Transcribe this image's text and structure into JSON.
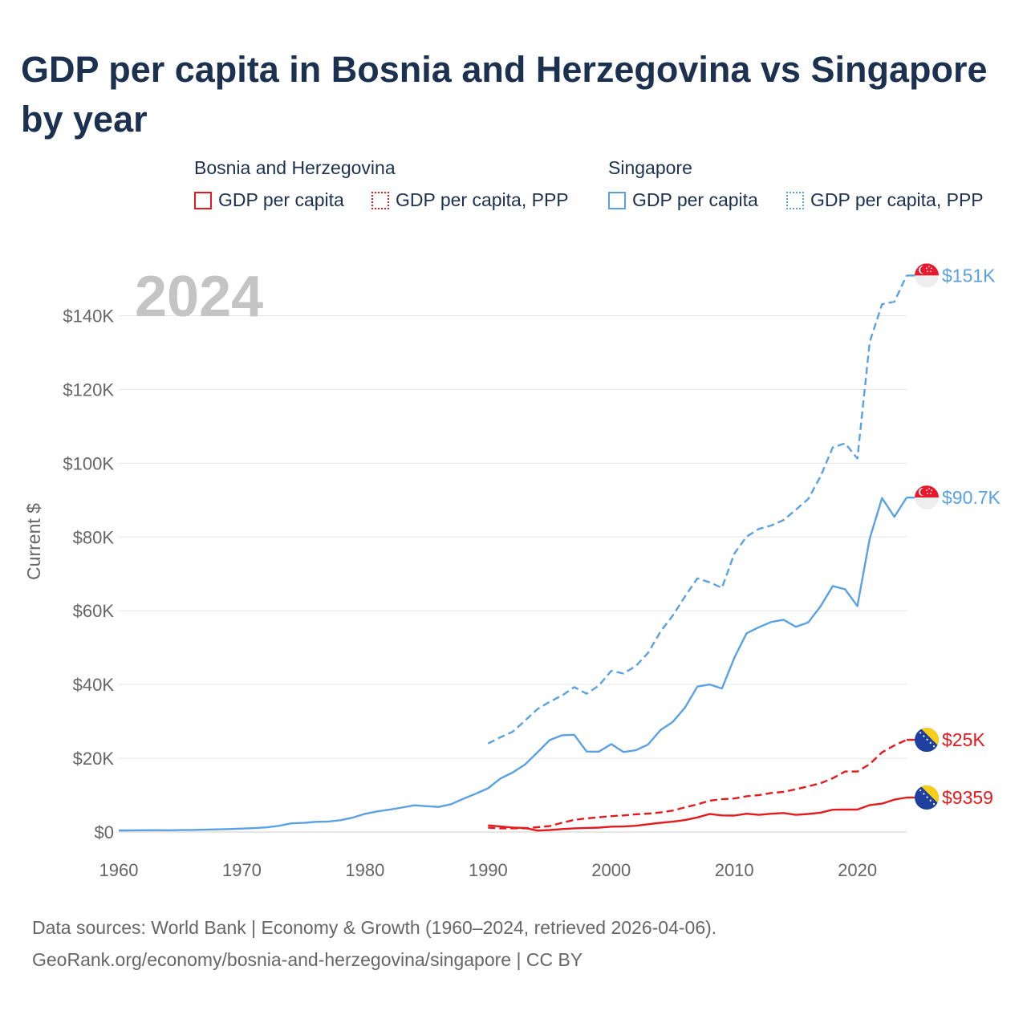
{
  "title": "GDP per capita in Bosnia and Herzegovina vs Singapore by year",
  "legend": {
    "groups": [
      {
        "name": "Bosnia and Herzegovina",
        "items": [
          {
            "label": "GDP per capita",
            "style": "solid",
            "color": "#e41a1c"
          },
          {
            "label": "GDP per capita, PPP",
            "style": "dotted",
            "color": "#e41a1c"
          }
        ]
      },
      {
        "name": "Singapore",
        "items": [
          {
            "label": "GDP per capita",
            "style": "solid",
            "color": "#5aa1e3"
          },
          {
            "label": "GDP per capita, PPP",
            "style": "dotted",
            "color": "#5aa1e3"
          }
        ]
      }
    ]
  },
  "chart_data": {
    "type": "line",
    "year_label": "2024",
    "ylabel": "Current $",
    "xlim": [
      1960,
      2024
    ],
    "ylim": [
      0,
      150000
    ],
    "x_ticks": [
      1960,
      1970,
      1980,
      1990,
      2000,
      2010,
      2020
    ],
    "x_tick_labels": [
      "1960",
      "1970",
      "1980",
      "1990",
      "2000",
      "2010",
      "2020"
    ],
    "y_ticks": [
      0,
      20000,
      40000,
      60000,
      80000,
      100000,
      120000,
      140000
    ],
    "y_tick_labels": [
      "$0",
      "$20K",
      "$40K",
      "$60K",
      "$80K",
      "$100K",
      "$120K",
      "$140K"
    ],
    "grid": true,
    "series": [
      {
        "name": "Singapore GDP per capita",
        "country": "Singapore",
        "color": "#5aa1e3",
        "dash": "solid",
        "end_label": "$90.7K",
        "flag": "singapore-flag-icon",
        "x": [
          1960,
          1961,
          1962,
          1963,
          1964,
          1965,
          1966,
          1967,
          1968,
          1969,
          1970,
          1971,
          1972,
          1973,
          1974,
          1975,
          1976,
          1977,
          1978,
          1979,
          1980,
          1981,
          1982,
          1983,
          1984,
          1985,
          1986,
          1987,
          1988,
          1989,
          1990,
          1991,
          1992,
          1993,
          1994,
          1995,
          1996,
          1997,
          1998,
          1999,
          2000,
          2001,
          2002,
          2003,
          2004,
          2005,
          2006,
          2007,
          2008,
          2009,
          2010,
          2011,
          2012,
          2013,
          2014,
          2015,
          2016,
          2017,
          2018,
          2019,
          2020,
          2021,
          2022,
          2023,
          2024
        ],
        "values": [
          428,
          449,
          472,
          511,
          485,
          516,
          566,
          626,
          708,
          812,
          925,
          1070,
          1264,
          1685,
          2342,
          2490,
          2770,
          2846,
          3194,
          3901,
          4928,
          5596,
          6078,
          6632,
          7235,
          7002,
          6800,
          7539,
          9018,
          10394,
          11862,
          14502,
          16136,
          18290,
          21553,
          24915,
          26233,
          26375,
          21829,
          21797,
          23853,
          21701,
          22160,
          23730,
          27619,
          29870,
          33768,
          39433,
          40008,
          38927,
          47237,
          53891,
          55546,
          56967,
          57563,
          55647,
          56828,
          61176,
          66680,
          65831,
          61274,
          79601,
          90557,
          85488,
          90689
        ]
      },
      {
        "name": "Singapore GDP per capita, PPP",
        "country": "Singapore",
        "color": "#5aa1e3",
        "dash": "dashed",
        "end_label": "$151K",
        "flag": "singapore-flag-icon",
        "x": [
          1990,
          1991,
          1992,
          1993,
          1994,
          1995,
          1996,
          1997,
          1998,
          1999,
          2000,
          2001,
          2002,
          2003,
          2004,
          2005,
          2006,
          2007,
          2008,
          2009,
          2010,
          2011,
          2012,
          2013,
          2014,
          2015,
          2016,
          2017,
          2018,
          2019,
          2020,
          2021,
          2022,
          2023,
          2024
        ],
        "values": [
          24000,
          25700,
          27200,
          30200,
          33300,
          35300,
          37000,
          39300,
          37500,
          39700,
          43700,
          43000,
          45000,
          48600,
          54300,
          58700,
          63900,
          68800,
          67700,
          66200,
          75500,
          80100,
          82200,
          83100,
          84600,
          87400,
          90300,
          96400,
          104300,
          105400,
          101300,
          132900,
          143100,
          143800,
          150900
        ]
      },
      {
        "name": "Bosnia and Herzegovina GDP per capita",
        "country": "Bosnia and Herzegovina",
        "color": "#e41a1c",
        "dash": "solid",
        "end_label": "$9359",
        "flag": "bosnia-flag-icon",
        "x": [
          1990,
          1991,
          1992,
          1993,
          1994,
          1995,
          1996,
          1997,
          1998,
          1999,
          2000,
          2001,
          2002,
          2003,
          2004,
          2005,
          2006,
          2007,
          2008,
          2009,
          2010,
          2011,
          2012,
          2013,
          2014,
          2015,
          2016,
          2017,
          2018,
          2019,
          2020,
          2021,
          2022,
          2023,
          2024
        ],
        "values": [
          1800,
          1500,
          1200,
          1100,
          400,
          550,
          800,
          1000,
          1100,
          1200,
          1450,
          1500,
          1700,
          2100,
          2500,
          2800,
          3250,
          3950,
          4900,
          4500,
          4450,
          4950,
          4650,
          4950,
          5150,
          4650,
          4900,
          5250,
          6050,
          6100,
          6100,
          7300,
          7700,
          8800,
          9359
        ]
      },
      {
        "name": "Bosnia and Herzegovina GDP per capita, PPP",
        "country": "Bosnia and Herzegovina",
        "color": "#e41a1c",
        "dash": "dashed",
        "end_label": "$25K",
        "flag": "bosnia-flag-icon",
        "x": [
          1990,
          1991,
          1992,
          1993,
          1994,
          1995,
          1996,
          1997,
          1998,
          1999,
          2000,
          2001,
          2002,
          2003,
          2004,
          2005,
          2006,
          2007,
          2008,
          2009,
          2010,
          2011,
          2012,
          2013,
          2014,
          2015,
          2016,
          2017,
          2018,
          2019,
          2020,
          2021,
          2022,
          2023,
          2024
        ],
        "values": [
          1200,
          1000,
          1000,
          1000,
          1300,
          1600,
          2500,
          3300,
          3700,
          4000,
          4300,
          4500,
          4800,
          5000,
          5300,
          5800,
          6700,
          7500,
          8500,
          8900,
          9100,
          9700,
          10000,
          10600,
          10900,
          11600,
          12400,
          13200,
          14600,
          16400,
          16400,
          18400,
          21600,
          23500,
          25000
        ]
      }
    ]
  },
  "footer": {
    "line1": "Data sources: World Bank | Economy & Growth (1960–2024, retrieved 2026-04-06).",
    "line2": "GeoRank.org/economy/bosnia-and-herzegovina/singapore | CC BY"
  }
}
